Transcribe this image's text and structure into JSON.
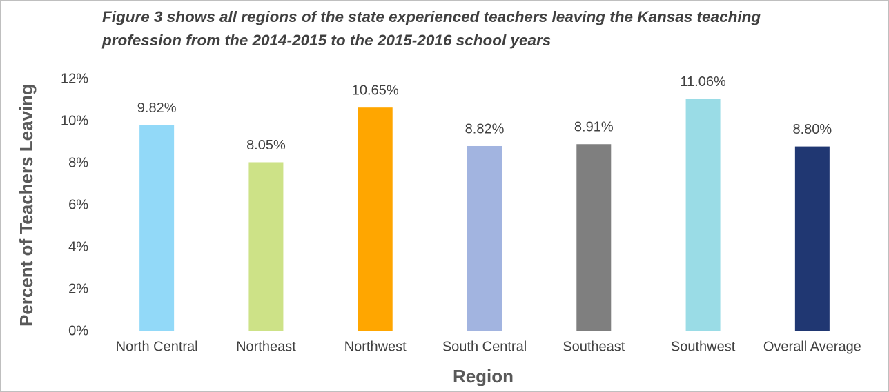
{
  "chart_data": {
    "type": "bar",
    "title": "Figure 3 shows all regions of the state experienced teachers leaving the Kansas teaching profession from the 2014-2015 to the 2015-2016 school years",
    "x_label": "Region",
    "y_label": "Percent of Teachers Leaving",
    "categories": [
      "North Central",
      "Northeast",
      "Northwest",
      "South Central",
      "Southeast",
      "Southwest",
      "Overall Average"
    ],
    "values": [
      9.82,
      8.05,
      10.65,
      8.82,
      8.91,
      11.06,
      8.8
    ],
    "value_labels": [
      "9.82%",
      "8.05%",
      "10.65%",
      "8.82%",
      "8.91%",
      "11.06%",
      "8.80%"
    ],
    "colors": [
      "#92d9f8",
      "#cde287",
      "#ffa600",
      "#a2b4e0",
      "#7f7f7f",
      "#9adce6",
      "#203772"
    ],
    "ylim": [
      0,
      12
    ],
    "yticks": [
      {
        "value": 0,
        "label": "0%"
      },
      {
        "value": 2,
        "label": "2%"
      },
      {
        "value": 4,
        "label": "4%"
      },
      {
        "value": 6,
        "label": "6%"
      },
      {
        "value": 8,
        "label": "8%"
      },
      {
        "value": 10,
        "label": "10%"
      },
      {
        "value": 12,
        "label": "12%"
      }
    ],
    "grid": false
  }
}
